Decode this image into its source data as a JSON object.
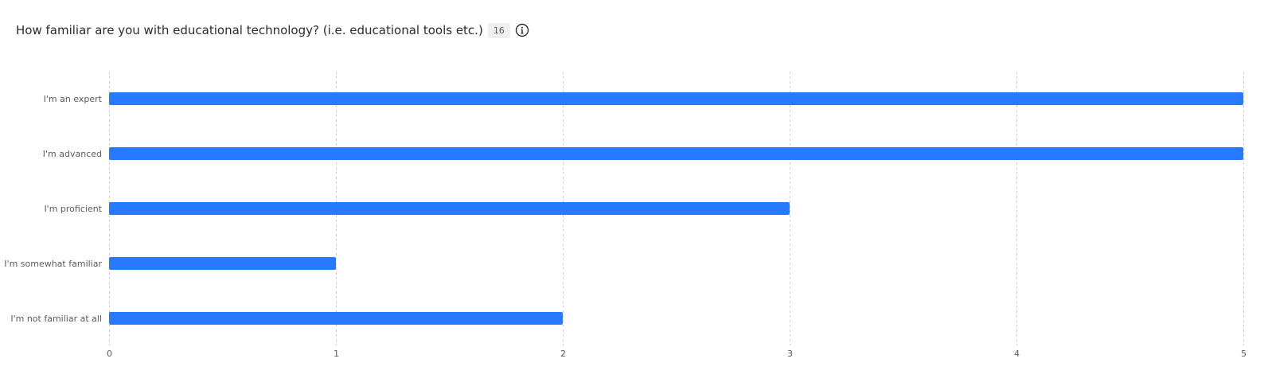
{
  "question": {
    "text": "How familiar are you with educational technology? (i.e. educational tools etc.)",
    "response_count": "16",
    "info_icon": "info-circle-icon"
  },
  "colors": {
    "bar": "#2979ff",
    "grid": "#cfcfcf",
    "label": "#5a5a5a"
  },
  "chart_data": {
    "type": "bar",
    "orientation": "horizontal",
    "categories": [
      "I'm an expert",
      "I'm advanced",
      "I'm proficient",
      "I'm somewhat familiar",
      "I'm not familiar at all"
    ],
    "values": [
      5,
      5,
      3,
      1,
      2
    ],
    "xlim": [
      0,
      5
    ],
    "xticks": [
      "0",
      "1",
      "2",
      "3",
      "4",
      "5"
    ],
    "grid": true,
    "title": "",
    "xlabel": "",
    "ylabel": ""
  }
}
